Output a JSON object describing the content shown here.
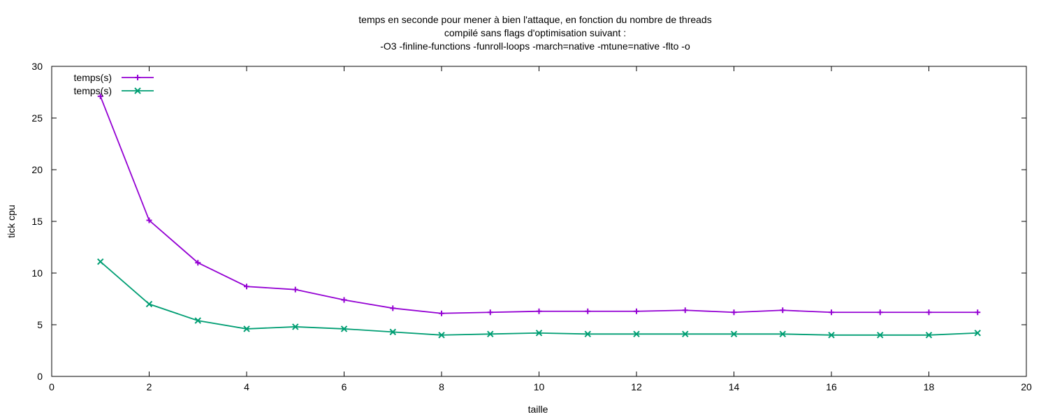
{
  "chart_data": {
    "type": "line",
    "title_lines": [
      "temps en seconde pour mener à bien l'attaque, en fonction du nombre de threads",
      "compilé sans flags d'optimisation suivant :",
      "-O3 -finline-functions -funroll-loops -march=native -mtune=native -flto -o"
    ],
    "xlabel": "taille",
    "ylabel": "tick cpu",
    "xlim": [
      0,
      20
    ],
    "ylim": [
      0,
      30
    ],
    "xticks": [
      0,
      2,
      4,
      6,
      8,
      10,
      12,
      14,
      16,
      18,
      20
    ],
    "yticks": [
      0,
      5,
      10,
      15,
      20,
      25,
      30
    ],
    "grid": false,
    "legend_position": "top-left",
    "x": [
      1,
      2,
      3,
      4,
      5,
      6,
      7,
      8,
      9,
      10,
      11,
      12,
      13,
      14,
      15,
      16,
      17,
      18,
      19
    ],
    "series": [
      {
        "name": "temps(s)",
        "color": "#9400d3",
        "marker": "plus",
        "values": [
          27.1,
          15.1,
          11.0,
          8.7,
          8.4,
          7.4,
          6.6,
          6.1,
          6.2,
          6.3,
          6.3,
          6.3,
          6.4,
          6.2,
          6.4,
          6.2,
          6.2,
          6.2,
          6.2
        ]
      },
      {
        "name": "temps(s)",
        "color": "#009e73",
        "marker": "cross",
        "values": [
          11.1,
          7.0,
          5.4,
          4.6,
          4.8,
          4.6,
          4.3,
          4.0,
          4.1,
          4.2,
          4.1,
          4.1,
          4.1,
          4.1,
          4.1,
          4.0,
          4.0,
          4.0,
          4.2
        ]
      }
    ]
  }
}
